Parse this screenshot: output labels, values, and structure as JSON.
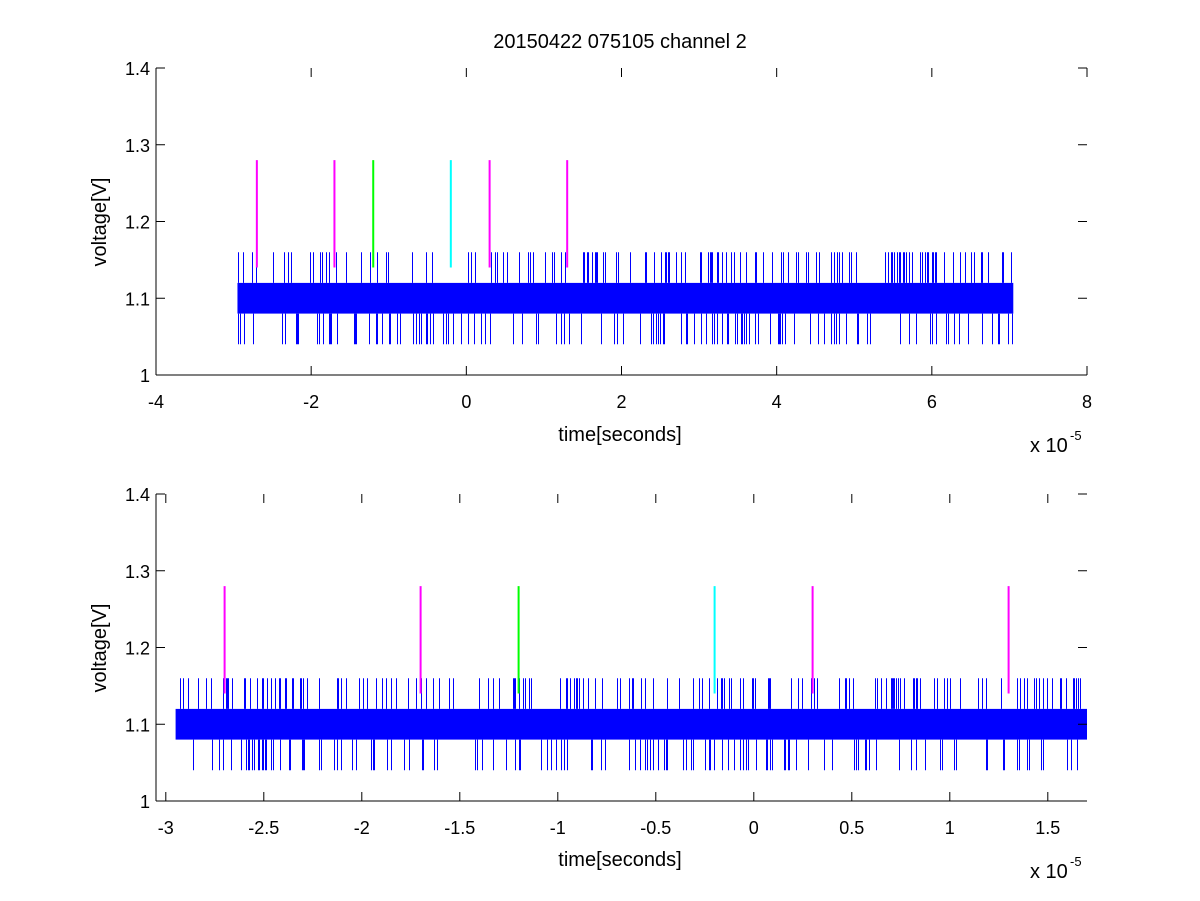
{
  "chart_data": [
    {
      "type": "line",
      "title": "20150422 075105 channel 2",
      "xlabel": "time[seconds]",
      "ylabel": "voltage[V]",
      "x_exponent_base": "x 10",
      "x_exponent_power": "-5",
      "xlim": [
        -4,
        8
      ],
      "ylim": [
        1,
        1.4
      ],
      "xticks": [
        -4,
        -2,
        0,
        2,
        4,
        6,
        8
      ],
      "xtick_labels": [
        "-4",
        "-2",
        "0",
        "2",
        "4",
        "6",
        "8"
      ],
      "yticks": [
        1,
        1.1,
        1.2,
        1.3,
        1.4
      ],
      "ytick_labels": [
        "1",
        "1.1",
        "1.2",
        "1.3",
        "1.4"
      ],
      "grid": false,
      "signal": {
        "color": "#0000ff",
        "x_range": [
          -2.95,
          7.05
        ],
        "band": [
          1.08,
          1.12
        ],
        "spike_levels": {
          "high": 1.16,
          "low": 1.04
        }
      },
      "markers": [
        {
          "x": -2.7,
          "y_range": [
            1.14,
            1.28
          ],
          "color": "#ff00ff"
        },
        {
          "x": -1.7,
          "y_range": [
            1.14,
            1.28
          ],
          "color": "#ff00ff"
        },
        {
          "x": -1.2,
          "y_range": [
            1.14,
            1.28
          ],
          "color": "#00ff00"
        },
        {
          "x": -0.2,
          "y_range": [
            1.14,
            1.28
          ],
          "color": "#00ffff"
        },
        {
          "x": 0.3,
          "y_range": [
            1.14,
            1.28
          ],
          "color": "#ff00ff"
        },
        {
          "x": 1.3,
          "y_range": [
            1.14,
            1.28
          ],
          "color": "#ff00ff"
        }
      ]
    },
    {
      "type": "line",
      "title": "",
      "xlabel": "time[seconds]",
      "ylabel": "voltage[V]",
      "x_exponent_base": "x 10",
      "x_exponent_power": "-5",
      "xlim": [
        -3.05,
        1.7
      ],
      "ylim": [
        1,
        1.4
      ],
      "xticks": [
        -3,
        -2.5,
        -2,
        -1.5,
        -1,
        -0.5,
        0,
        0.5,
        1,
        1.5
      ],
      "xtick_labels": [
        "-3",
        "-2.5",
        "-2",
        "-1.5",
        "-1",
        "-0.5",
        "0",
        "0.5",
        "1",
        "1.5"
      ],
      "yticks": [
        1,
        1.1,
        1.2,
        1.3,
        1.4
      ],
      "ytick_labels": [
        "1",
        "1.1",
        "1.2",
        "1.3",
        "1.4"
      ],
      "grid": false,
      "signal": {
        "color": "#0000ff",
        "x_range": [
          -2.95,
          1.7
        ],
        "band": [
          1.08,
          1.12
        ],
        "spike_levels": {
          "high": 1.16,
          "low": 1.04
        }
      },
      "markers": [
        {
          "x": -2.7,
          "y_range": [
            1.14,
            1.28
          ],
          "color": "#ff00ff"
        },
        {
          "x": -1.7,
          "y_range": [
            1.14,
            1.28
          ],
          "color": "#ff00ff"
        },
        {
          "x": -1.2,
          "y_range": [
            1.14,
            1.28
          ],
          "color": "#00ff00"
        },
        {
          "x": -0.2,
          "y_range": [
            1.14,
            1.28
          ],
          "color": "#00ffff"
        },
        {
          "x": 0.3,
          "y_range": [
            1.14,
            1.28
          ],
          "color": "#ff00ff"
        },
        {
          "x": 1.3,
          "y_range": [
            1.14,
            1.28
          ],
          "color": "#ff00ff"
        }
      ]
    }
  ]
}
